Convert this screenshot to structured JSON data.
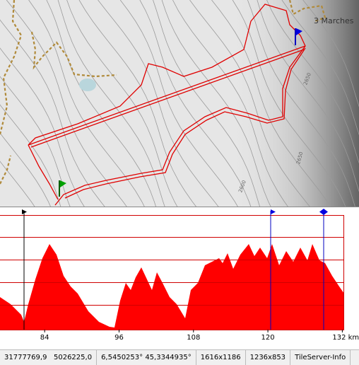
{
  "map": {
    "place_label": "3 Marches",
    "contour_labels": [
      "2650",
      "2650",
      "2600"
    ]
  },
  "profile": {
    "xlim": [
      76.8,
      132.3
    ],
    "xticks": [
      84,
      96,
      108,
      120,
      {
        "value": 132,
        "label": "132 km"
      }
    ]
  },
  "status_bar": {
    "projected": "31777769,9   5026225,0",
    "geographic": "6,5450253° 45,3344935°",
    "size_1": "1616x1186",
    "size_2": "1236x853",
    "button": "TileServer-Info"
  }
}
